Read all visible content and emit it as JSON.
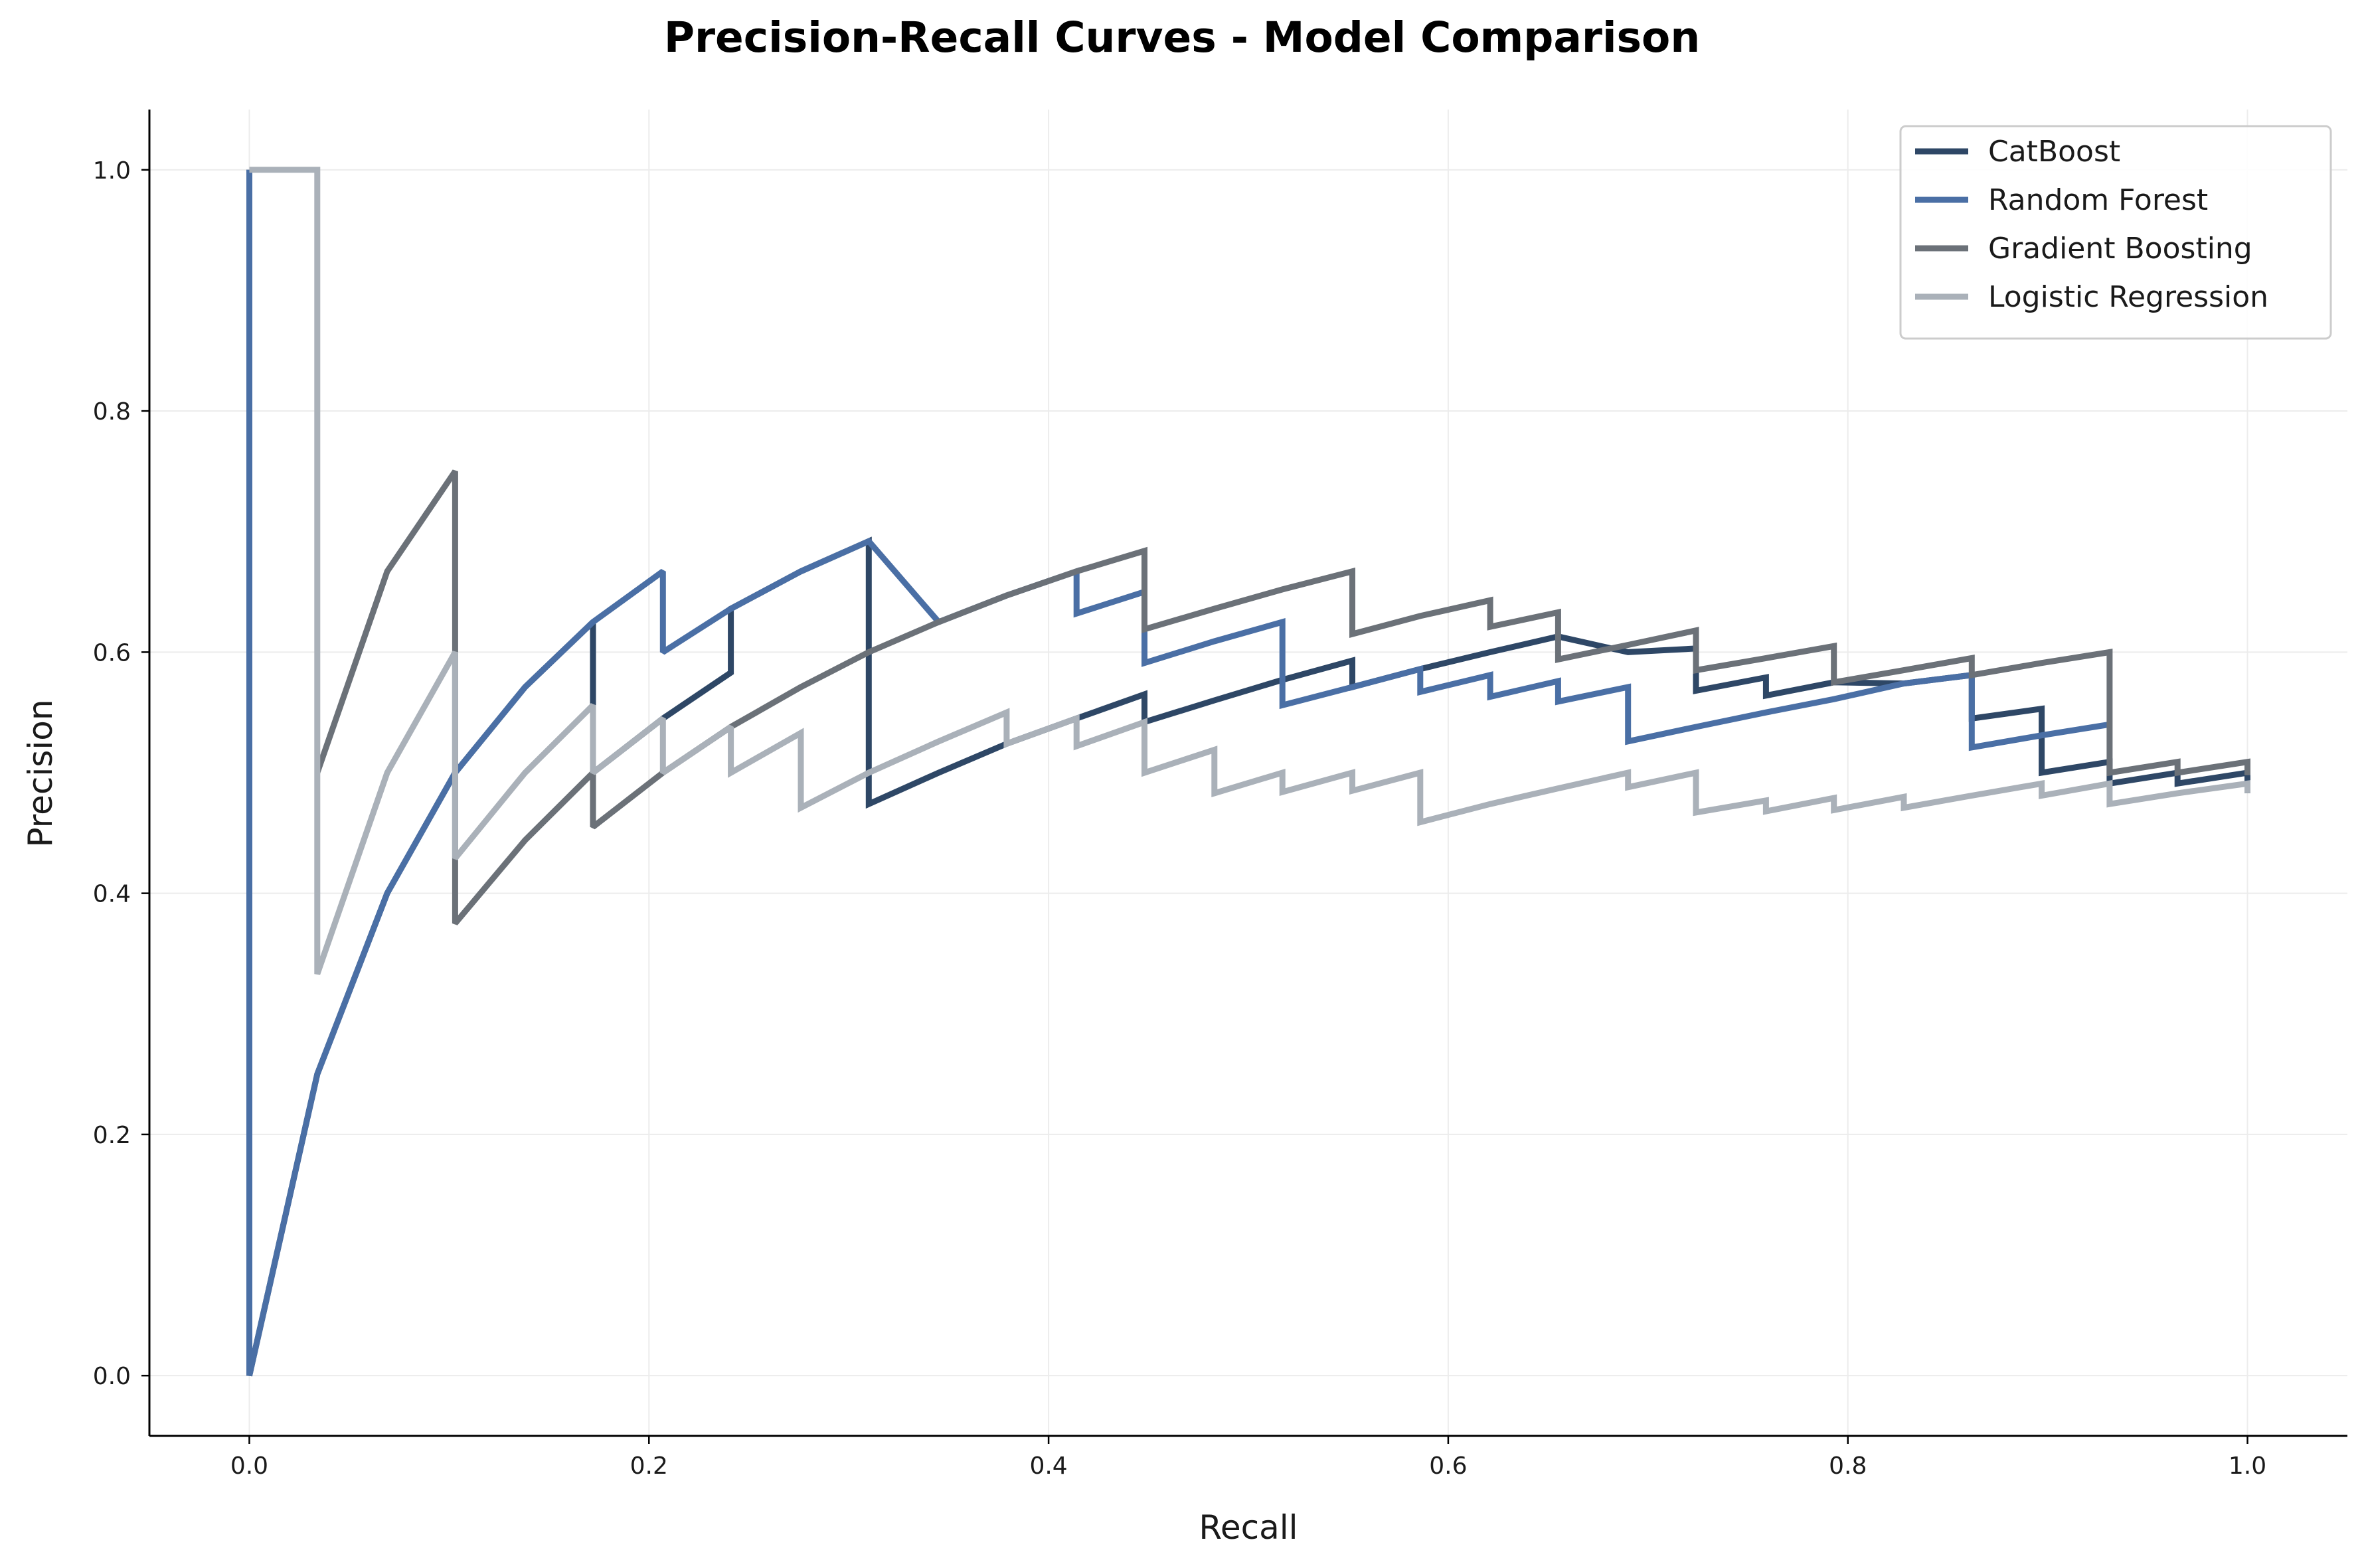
{
  "chart_data": {
    "type": "line",
    "title": "Precision-Recall Curves - Model Comparison",
    "xlabel": "Recall",
    "ylabel": "Precision",
    "xlim": [
      -0.05,
      1.05
    ],
    "ylim": [
      -0.05,
      1.05
    ],
    "xticks": [
      "0.0",
      "0.2",
      "0.4",
      "0.6",
      "0.8",
      "1.0"
    ],
    "yticks": [
      "0.0",
      "0.2",
      "0.4",
      "0.6",
      "0.8",
      "1.0"
    ],
    "grid": true,
    "legend_position": "top-right",
    "series": [
      {
        "name": "CatBoost",
        "color": "#2e4766",
        "x": [
          1.0,
          1.0,
          0.965,
          0.965,
          0.931,
          0.931,
          0.897,
          0.897,
          0.862,
          0.862,
          0.828,
          0.793,
          0.759,
          0.759,
          0.724,
          0.724,
          0.69,
          0.655,
          0.621,
          0.586,
          0.552,
          0.552,
          0.517,
          0.483,
          0.448,
          0.448,
          0.414,
          0.379,
          0.345,
          0.31,
          0.31,
          0.276,
          0.241,
          0.241,
          0.207,
          0.172,
          0.172,
          0.138,
          0.103,
          0.069,
          0.034,
          0.0,
          0.0
        ],
        "y": [
          0.483,
          0.5,
          0.491,
          0.5,
          0.491,
          0.509,
          0.5,
          0.553,
          0.545,
          0.581,
          0.574,
          0.575,
          0.564,
          0.579,
          0.568,
          0.603,
          0.6,
          0.613,
          0.6,
          0.586,
          0.571,
          0.593,
          0.577,
          0.56,
          0.542,
          0.565,
          0.545,
          0.524,
          0.5,
          0.474,
          0.692,
          0.667,
          0.636,
          0.583,
          0.545,
          0.5,
          0.625,
          0.571,
          0.5,
          0.4,
          0.25,
          0.0,
          1.0
        ]
      },
      {
        "name": "Random Forest",
        "color": "#4a6fa5",
        "x": [
          0.931,
          0.897,
          0.862,
          0.862,
          0.828,
          0.793,
          0.759,
          0.724,
          0.69,
          0.69,
          0.655,
          0.655,
          0.621,
          0.621,
          0.586,
          0.586,
          0.552,
          0.517,
          0.517,
          0.483,
          0.448,
          0.448,
          0.414,
          0.414,
          0.379,
          0.345,
          0.31,
          0.276,
          0.241,
          0.207,
          0.207,
          0.172,
          0.138,
          0.103,
          0.069,
          0.034,
          0.0,
          0.0
        ],
        "y": [
          0.54,
          0.531,
          0.521,
          0.581,
          0.574,
          0.561,
          0.55,
          0.538,
          0.526,
          0.571,
          0.559,
          0.576,
          0.563,
          0.581,
          0.567,
          0.586,
          0.571,
          0.556,
          0.625,
          0.609,
          0.591,
          0.65,
          0.632,
          0.667,
          0.647,
          0.625,
          0.692,
          0.667,
          0.636,
          0.6,
          0.667,
          0.625,
          0.571,
          0.5,
          0.4,
          0.25,
          0.0,
          1.0
        ]
      },
      {
        "name": "Gradient Boosting",
        "color": "#6b7178",
        "x": [
          1.0,
          1.0,
          0.965,
          0.965,
          0.931,
          0.931,
          0.897,
          0.862,
          0.862,
          0.828,
          0.793,
          0.793,
          0.759,
          0.724,
          0.724,
          0.69,
          0.655,
          0.655,
          0.621,
          0.621,
          0.586,
          0.552,
          0.552,
          0.517,
          0.483,
          0.448,
          0.448,
          0.414,
          0.379,
          0.345,
          0.31,
          0.276,
          0.241,
          0.207,
          0.172,
          0.172,
          0.138,
          0.103,
          0.103,
          0.069,
          0.034,
          0.034
        ],
        "y": [
          0.498,
          0.509,
          0.5,
          0.509,
          0.5,
          0.6,
          0.591,
          0.581,
          0.595,
          0.585,
          0.575,
          0.605,
          0.595,
          0.585,
          0.618,
          0.606,
          0.594,
          0.633,
          0.621,
          0.643,
          0.63,
          0.615,
          0.667,
          0.652,
          0.636,
          0.619,
          0.684,
          0.667,
          0.647,
          0.625,
          0.6,
          0.571,
          0.538,
          0.5,
          0.455,
          0.5,
          0.444,
          0.375,
          0.75,
          0.667,
          0.5,
          0.5
        ]
      },
      {
        "name": "Logistic Regression",
        "color": "#aab1b9",
        "x": [
          1.0,
          1.0,
          0.965,
          0.931,
          0.931,
          0.897,
          0.897,
          0.862,
          0.828,
          0.828,
          0.793,
          0.793,
          0.759,
          0.759,
          0.724,
          0.724,
          0.69,
          0.69,
          0.655,
          0.621,
          0.586,
          0.586,
          0.552,
          0.552,
          0.517,
          0.517,
          0.483,
          0.483,
          0.448,
          0.448,
          0.414,
          0.414,
          0.379,
          0.379,
          0.345,
          0.31,
          0.276,
          0.276,
          0.241,
          0.241,
          0.207,
          0.207,
          0.172,
          0.172,
          0.138,
          0.103,
          0.103,
          0.069,
          0.034,
          0.034,
          0.0
        ],
        "y": [
          0.483,
          0.491,
          0.483,
          0.474,
          0.491,
          0.481,
          0.491,
          0.481,
          0.471,
          0.48,
          0.469,
          0.479,
          0.468,
          0.477,
          0.467,
          0.5,
          0.488,
          0.5,
          0.487,
          0.474,
          0.459,
          0.5,
          0.485,
          0.5,
          0.484,
          0.5,
          0.483,
          0.519,
          0.5,
          0.542,
          0.522,
          0.545,
          0.524,
          0.55,
          0.526,
          0.5,
          0.471,
          0.533,
          0.5,
          0.538,
          0.5,
          0.545,
          0.5,
          0.556,
          0.5,
          0.429,
          0.6,
          0.5,
          0.333,
          1.0,
          1.0
        ]
      }
    ]
  }
}
